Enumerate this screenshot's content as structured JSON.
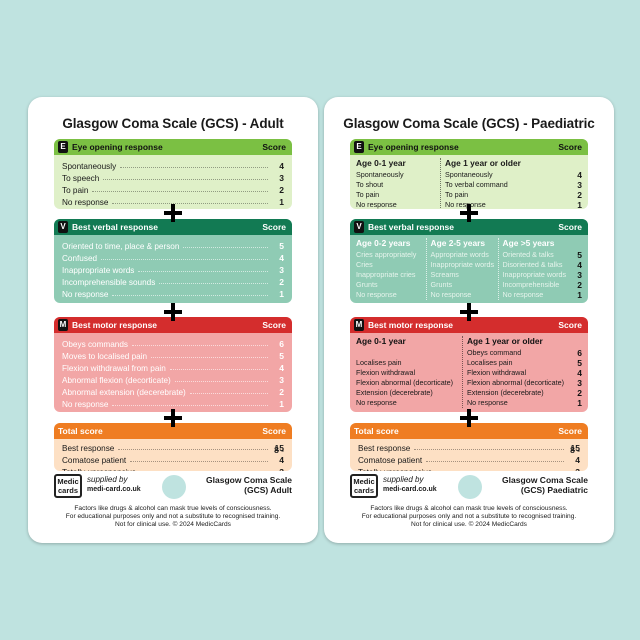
{
  "adult": {
    "title": "Glasgow Coma Scale (GCS) - Adult",
    "eye": {
      "letter": "E",
      "title": "Eye opening response",
      "score_label": "Score",
      "rows": [
        {
          "t": "Spontaneously",
          "s": "4"
        },
        {
          "t": "To speech",
          "s": "3"
        },
        {
          "t": "To pain",
          "s": "2"
        },
        {
          "t": "No response",
          "s": "1"
        }
      ]
    },
    "verbal": {
      "letter": "V",
      "title": "Best verbal response",
      "score_label": "Score",
      "rows": [
        {
          "t": "Oriented to time, place & person",
          "s": "5"
        },
        {
          "t": "Confused",
          "s": "4"
        },
        {
          "t": "Inappropriate words",
          "s": "3"
        },
        {
          "t": "Incomprehensible sounds",
          "s": "2"
        },
        {
          "t": "No response",
          "s": "1"
        }
      ]
    },
    "motor": {
      "letter": "M",
      "title": "Best motor response",
      "score_label": "Score",
      "rows": [
        {
          "t": "Obeys commands",
          "s": "6"
        },
        {
          "t": "Moves to localised pain",
          "s": "5"
        },
        {
          "t": "Flexion withdrawal from pain",
          "s": "4"
        },
        {
          "t": "Abnormal flexion (decorticate)",
          "s": "3"
        },
        {
          "t": "Abnormal extension (decerebrate)",
          "s": "2"
        },
        {
          "t": "No response",
          "s": "1"
        }
      ]
    },
    "total": {
      "title": "Total score",
      "score_label": "Score",
      "rows": [
        {
          "t": "Best response",
          "s": "15"
        },
        {
          "t": "Comatose patient",
          "s": "8 - 4"
        },
        {
          "t": "Totally unresponsive",
          "s": "3"
        }
      ]
    },
    "footer_title": "Glasgow Coma Scale (GCS) Adult"
  },
  "paed": {
    "title": "Glasgow Coma Scale (GCS) - Paediatric",
    "eye": {
      "letter": "E",
      "title": "Eye opening response",
      "score_label": "Score",
      "col1_head": "Age 0-1 year",
      "col2_head": "Age 1 year or older",
      "col1": [
        "Spontaneously",
        "To shout",
        "To pain",
        "No response"
      ],
      "col2": [
        "Spontaneously",
        "To verbal command",
        "To pain",
        "No response"
      ],
      "scores": [
        "4",
        "3",
        "2",
        "1"
      ]
    },
    "verbal": {
      "letter": "V",
      "title": "Best verbal response",
      "score_label": "Score",
      "col1_head": "Age 0-2 years",
      "col2_head": "Age 2-5 years",
      "col3_head": "Age >5 years",
      "col1": [
        "Cries appropriately",
        "Cries",
        "Inappropriate cries",
        "Grunts",
        "No response"
      ],
      "col2": [
        "Appropriate words",
        "Inappropriate words",
        "Screams",
        "Grunts",
        "No response"
      ],
      "col3": [
        "Oriented & talks",
        "Disoriented & talks",
        "Inappropriate words",
        "Incomprehensible",
        "No response"
      ],
      "scores": [
        "5",
        "4",
        "3",
        "2",
        "1"
      ]
    },
    "motor": {
      "letter": "M",
      "title": "Best motor response",
      "score_label": "Score",
      "col1_head": "Age 0-1 year",
      "col2_head": "Age 1 year or older",
      "col1": [
        "",
        "Localises pain",
        "Flexion withdrawal",
        "Flexion abnormal (decorticate)",
        "Extension (decerebrate)",
        "No response"
      ],
      "col2": [
        "Obeys command",
        "Localises pain",
        "Flexion withdrawal",
        "Flexion abnormal (decorticate)",
        "Extension (decerebrate)",
        "No response"
      ],
      "scores": [
        "6",
        "5",
        "4",
        "3",
        "2",
        "1"
      ]
    },
    "total": {
      "title": "Total score",
      "score_label": "Score",
      "rows": [
        {
          "t": "Best response",
          "s": "15"
        },
        {
          "t": "Comatose patient",
          "s": "8 - 4"
        },
        {
          "t": "Totally unresponsive",
          "s": "3"
        }
      ]
    },
    "footer_title": "Glasgow Coma Scale (GCS) Paediatric"
  },
  "brand": {
    "logo_line1": "Medic",
    "logo_line2": "cards",
    "supplied_by": "supplied by",
    "site": "medi-card.co.uk"
  },
  "disclaimer": {
    "line1": "Factors like drugs & alcohol can mask true levels of consciousness.",
    "line2": "For educational purposes only and not a substitute to recognised training.",
    "line3": "Not for clinical use. © 2024 MedicCards"
  },
  "colors": {
    "background": "#bfe3e0",
    "eye": "#7bc043",
    "verbal": "#127a53",
    "motor": "#d42d2d",
    "total": "#ef7d22"
  }
}
